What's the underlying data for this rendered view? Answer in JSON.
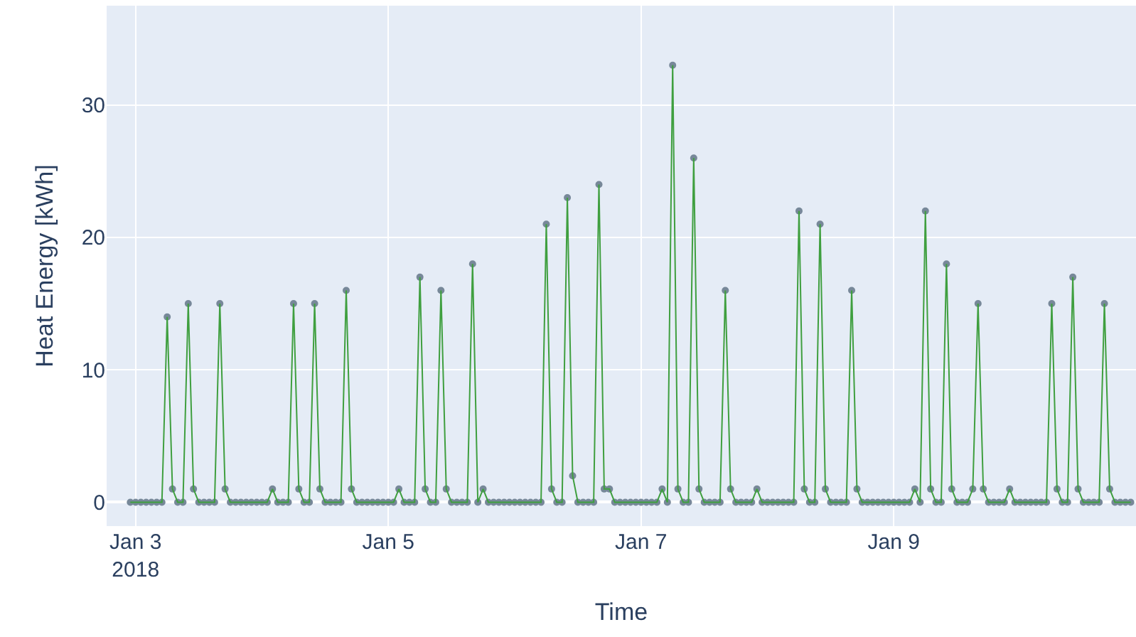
{
  "chart_data": {
    "type": "line",
    "xlabel": "Time",
    "ylabel": "Heat Energy [kWh]",
    "xlim": [
      "2018-01-02T18:30",
      "2018-01-10T22:00"
    ],
    "xticks": [
      {
        "value": "2018-01-03",
        "label": "Jan 3\n2018"
      },
      {
        "value": "2018-01-05",
        "label": "Jan 5"
      },
      {
        "value": "2018-01-07",
        "label": "Jan 7"
      },
      {
        "value": "2018-01-09",
        "label": "Jan 9"
      }
    ],
    "ylim": [
      -1.8,
      37.5
    ],
    "yticks": [
      0,
      10,
      20,
      30
    ],
    "grid": true,
    "marker": "circle",
    "line_style": "solid",
    "x": [
      "2018-01-02T23:00",
      "2018-01-03T00:00",
      "2018-01-03T01:00",
      "2018-01-03T02:00",
      "2018-01-03T03:00",
      "2018-01-03T04:00",
      "2018-01-03T05:00",
      "2018-01-03T06:00",
      "2018-01-03T07:00",
      "2018-01-03T08:00",
      "2018-01-03T09:00",
      "2018-01-03T10:00",
      "2018-01-03T11:00",
      "2018-01-03T12:00",
      "2018-01-03T13:00",
      "2018-01-03T14:00",
      "2018-01-03T15:00",
      "2018-01-03T16:00",
      "2018-01-03T17:00",
      "2018-01-03T18:00",
      "2018-01-03T19:00",
      "2018-01-03T20:00",
      "2018-01-03T21:00",
      "2018-01-03T22:00",
      "2018-01-03T23:00",
      "2018-01-04T00:00",
      "2018-01-04T01:00",
      "2018-01-04T02:00",
      "2018-01-04T03:00",
      "2018-01-04T04:00",
      "2018-01-04T05:00",
      "2018-01-04T06:00",
      "2018-01-04T07:00",
      "2018-01-04T08:00",
      "2018-01-04T09:00",
      "2018-01-04T10:00",
      "2018-01-04T11:00",
      "2018-01-04T12:00",
      "2018-01-04T13:00",
      "2018-01-04T14:00",
      "2018-01-04T15:00",
      "2018-01-04T16:00",
      "2018-01-04T17:00",
      "2018-01-04T18:00",
      "2018-01-04T19:00",
      "2018-01-04T20:00",
      "2018-01-04T21:00",
      "2018-01-04T22:00",
      "2018-01-04T23:00",
      "2018-01-05T00:00",
      "2018-01-05T01:00",
      "2018-01-05T02:00",
      "2018-01-05T03:00",
      "2018-01-05T04:00",
      "2018-01-05T05:00",
      "2018-01-05T06:00",
      "2018-01-05T07:00",
      "2018-01-05T08:00",
      "2018-01-05T09:00",
      "2018-01-05T10:00",
      "2018-01-05T11:00",
      "2018-01-05T12:00",
      "2018-01-05T13:00",
      "2018-01-05T14:00",
      "2018-01-05T15:00",
      "2018-01-05T16:00",
      "2018-01-05T17:00",
      "2018-01-05T18:00",
      "2018-01-05T19:00",
      "2018-01-05T20:00",
      "2018-01-05T21:00",
      "2018-01-05T22:00",
      "2018-01-05T23:00",
      "2018-01-06T00:00",
      "2018-01-06T01:00",
      "2018-01-06T02:00",
      "2018-01-06T03:00",
      "2018-01-06T04:00",
      "2018-01-06T05:00",
      "2018-01-06T06:00",
      "2018-01-06T07:00",
      "2018-01-06T08:00",
      "2018-01-06T09:00",
      "2018-01-06T10:00",
      "2018-01-06T11:00",
      "2018-01-06T12:00",
      "2018-01-06T13:00",
      "2018-01-06T14:00",
      "2018-01-06T15:00",
      "2018-01-06T16:00",
      "2018-01-06T17:00",
      "2018-01-06T18:00",
      "2018-01-06T19:00",
      "2018-01-06T20:00",
      "2018-01-06T21:00",
      "2018-01-06T22:00",
      "2018-01-06T23:00",
      "2018-01-07T00:00",
      "2018-01-07T01:00",
      "2018-01-07T02:00",
      "2018-01-07T03:00",
      "2018-01-07T04:00",
      "2018-01-07T05:00",
      "2018-01-07T06:00",
      "2018-01-07T07:00",
      "2018-01-07T08:00",
      "2018-01-07T09:00",
      "2018-01-07T10:00",
      "2018-01-07T11:00",
      "2018-01-07T12:00",
      "2018-01-07T13:00",
      "2018-01-07T14:00",
      "2018-01-07T15:00",
      "2018-01-07T16:00",
      "2018-01-07T17:00",
      "2018-01-07T18:00",
      "2018-01-07T19:00",
      "2018-01-07T20:00",
      "2018-01-07T21:00",
      "2018-01-07T22:00",
      "2018-01-07T23:00",
      "2018-01-08T00:00",
      "2018-01-08T01:00",
      "2018-01-08T02:00",
      "2018-01-08T03:00",
      "2018-01-08T04:00",
      "2018-01-08T05:00",
      "2018-01-08T06:00",
      "2018-01-08T07:00",
      "2018-01-08T08:00",
      "2018-01-08T09:00",
      "2018-01-08T10:00",
      "2018-01-08T11:00",
      "2018-01-08T12:00",
      "2018-01-08T13:00",
      "2018-01-08T14:00",
      "2018-01-08T15:00",
      "2018-01-08T16:00",
      "2018-01-08T17:00",
      "2018-01-08T18:00",
      "2018-01-08T19:00",
      "2018-01-08T20:00",
      "2018-01-08T21:00",
      "2018-01-08T22:00",
      "2018-01-08T23:00",
      "2018-01-09T00:00",
      "2018-01-09T01:00",
      "2018-01-09T02:00",
      "2018-01-09T03:00",
      "2018-01-09T04:00",
      "2018-01-09T05:00",
      "2018-01-09T06:00",
      "2018-01-09T07:00",
      "2018-01-09T08:00",
      "2018-01-09T09:00",
      "2018-01-09T10:00",
      "2018-01-09T11:00",
      "2018-01-09T12:00",
      "2018-01-09T13:00",
      "2018-01-09T14:00",
      "2018-01-09T15:00",
      "2018-01-09T16:00",
      "2018-01-09T17:00",
      "2018-01-09T18:00",
      "2018-01-09T19:00",
      "2018-01-09T20:00",
      "2018-01-09T21:00",
      "2018-01-09T22:00",
      "2018-01-09T23:00",
      "2018-01-10T00:00",
      "2018-01-10T01:00",
      "2018-01-10T02:00",
      "2018-01-10T03:00",
      "2018-01-10T04:00",
      "2018-01-10T05:00",
      "2018-01-10T06:00",
      "2018-01-10T07:00",
      "2018-01-10T08:00",
      "2018-01-10T09:00",
      "2018-01-10T10:00",
      "2018-01-10T11:00",
      "2018-01-10T12:00",
      "2018-01-10T13:00",
      "2018-01-10T14:00",
      "2018-01-10T15:00",
      "2018-01-10T16:00",
      "2018-01-10T17:00",
      "2018-01-10T18:00",
      "2018-01-10T19:00",
      "2018-01-10T20:00",
      "2018-01-10T21:00"
    ],
    "series": [
      {
        "color": "#3f9f3f",
        "values": [
          0,
          0,
          0,
          0,
          0,
          0,
          0,
          14,
          1,
          0,
          0,
          15,
          1,
          0,
          0,
          0,
          0,
          15,
          1,
          0,
          0,
          0,
          0,
          0,
          0,
          0,
          0,
          1,
          0,
          0,
          0,
          15,
          1,
          0,
          0,
          15,
          1,
          0,
          0,
          0,
          0,
          16,
          1,
          0,
          0,
          0,
          0,
          0,
          0,
          0,
          0,
          1,
          0,
          0,
          0,
          17,
          1,
          0,
          0,
          16,
          1,
          0,
          0,
          0,
          0,
          18,
          0,
          1,
          0,
          0,
          0,
          0,
          0,
          0,
          0,
          0,
          0,
          0,
          0,
          21,
          1,
          0,
          0,
          23,
          2,
          0,
          0,
          0,
          0,
          24,
          1,
          1,
          0,
          0,
          0,
          0,
          0,
          0,
          0,
          0,
          0,
          1,
          0,
          33,
          1,
          0,
          0,
          26,
          1,
          0,
          0,
          0,
          0,
          16,
          1,
          0,
          0,
          0,
          0,
          1,
          0,
          0,
          0,
          0,
          0,
          0,
          0,
          22,
          1,
          0,
          0,
          21,
          1,
          0,
          0,
          0,
          0,
          16,
          1,
          0,
          0,
          0,
          0,
          0,
          0,
          0,
          0,
          0,
          0,
          1,
          0,
          22,
          1,
          0,
          0,
          18,
          1,
          0,
          0,
          0,
          1,
          15,
          1,
          0,
          0,
          0,
          0,
          1,
          0,
          0,
          0,
          0,
          0,
          0,
          0,
          15,
          1,
          0,
          0,
          17,
          1,
          0,
          0,
          0,
          0,
          15,
          1,
          0,
          0,
          0,
          0
        ]
      }
    ]
  }
}
